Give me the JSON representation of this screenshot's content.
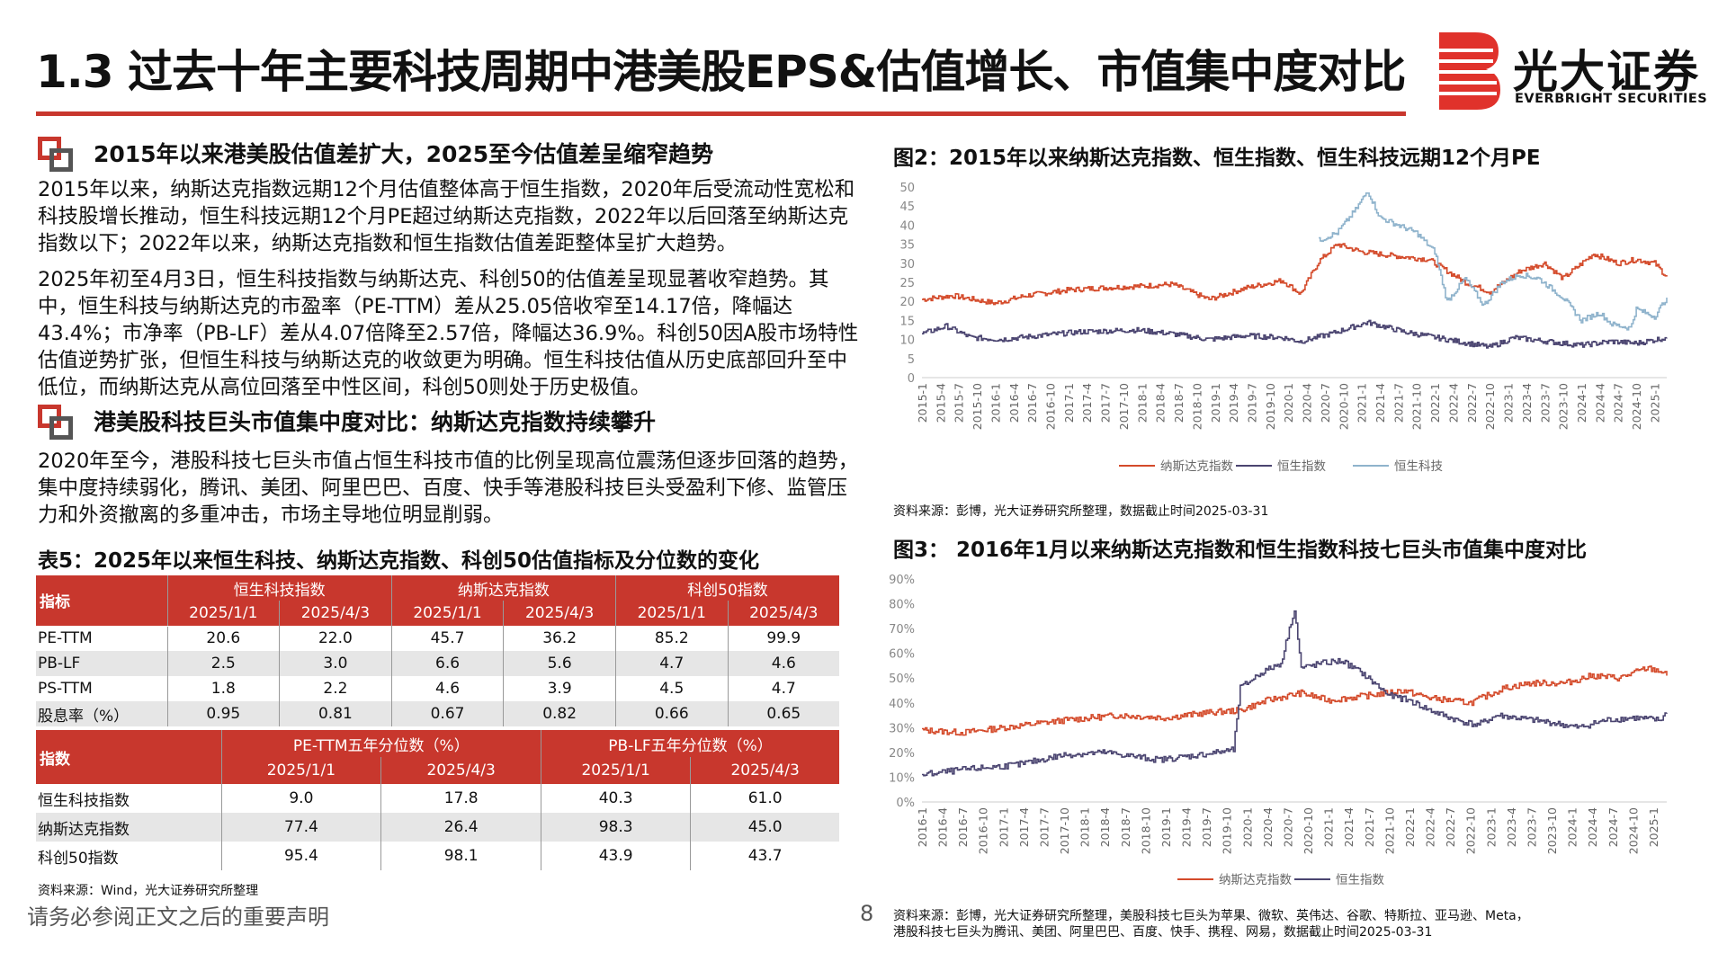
{
  "title": "1.3 过去十年主要科技周期中港美股EPS&估值增长、市值集中度对比",
  "logo": {
    "cn": "光大证券",
    "en": "EVERBRIGHT SECURITIES"
  },
  "sections": [
    {
      "heading": "2015年以来港美股估值差扩大，2025至今估值差呈缩窄趋势",
      "paragraphs": [
        "2015年以来，纳斯达克指数远期12个月估值整体高于恒生指数，2020年后受流动性宽松和科技股增长推动，恒生科技远期12个月PE超过纳斯达克指数，2022年以后回落至纳斯达克指数以下；2022年以来，纳斯达克指数和恒生指数估值差距整体呈扩大趋势。",
        "2025年初至4月3日，恒生科技指数与纳斯达克、科创50的估值差呈现显著收窄趋势。其中，恒生科技与纳斯达克的市盈率（PE-TTM）差从25.05倍收窄至14.17倍，降幅达43.4%；市净率（PB-LF）差从4.07倍降至2.57倍，降幅达36.9%。科创50因A股市场特性估值逆势扩张，但恒生科技与纳斯达克的收敛更为明确。恒生科技估值从历史底部回升至中低位，而纳斯达克从高位回落至中性区间，科创50则处于历史极值。"
      ]
    },
    {
      "heading": "港美股科技巨头市值集中度对比：纳斯达克指数持续攀升",
      "paragraphs": [
        "2020年至今，港股科技七巨头市值占恒生科技市值的比例呈现高位震荡但逐步回落的趋势，集中度持续弱化，腾讯、美团、阿里巴巴、百度、快手等港股科技巨头受盈利下修、监管压力和外资撤离的多重冲击，市场主导地位明显削弱。"
      ]
    }
  ],
  "table5": {
    "title": "表5：2025年以来恒生科技、纳斯达克指数、科创50估值指标及分位数的变化",
    "part1": {
      "corner": "指标",
      "groups": [
        "恒生科技指数",
        "纳斯达克指数",
        "科创50指数"
      ],
      "dates": [
        "2025/1/1",
        "2025/4/3",
        "2025/1/1",
        "2025/4/3",
        "2025/1/1",
        "2025/4/3"
      ],
      "rows": [
        {
          "label": "PE-TTM",
          "values": [
            "20.6",
            "22.0",
            "45.7",
            "36.2",
            "85.2",
            "99.9"
          ]
        },
        {
          "label": "PB-LF",
          "values": [
            "2.5",
            "3.0",
            "6.6",
            "5.6",
            "4.7",
            "4.6"
          ]
        },
        {
          "label": "PS-TTM",
          "values": [
            "1.8",
            "2.2",
            "4.6",
            "3.9",
            "4.5",
            "4.7"
          ]
        },
        {
          "label": "股息率（%）",
          "values": [
            "0.95",
            "0.81",
            "0.67",
            "0.82",
            "0.66",
            "0.65"
          ]
        }
      ]
    },
    "part2": {
      "corner": "指数",
      "groups": [
        "PE-TTM五年分位数（%）",
        "PB-LF五年分位数（%）"
      ],
      "dates": [
        "2025/1/1",
        "2025/4/3",
        "2025/1/1",
        "2025/4/3"
      ],
      "rows": [
        {
          "label": "恒生科技指数",
          "values": [
            "9.0",
            "17.8",
            "40.3",
            "61.0"
          ]
        },
        {
          "label": "纳斯达克指数",
          "values": [
            "77.4",
            "26.4",
            "98.3",
            "45.0"
          ]
        },
        {
          "label": "科创50指数",
          "values": [
            "95.4",
            "98.1",
            "43.9",
            "43.7"
          ]
        }
      ]
    },
    "source": "资料来源：Wind，光大证券研究所整理"
  },
  "footer": {
    "disclaimer": "请务必参阅正文之后的重要声明",
    "page": "8"
  },
  "colors": {
    "accent": "#c8372d",
    "nasdaq": "#d44a2a",
    "hsi": "#4a4470",
    "hstech": "#8fb3cc"
  },
  "chart_data": [
    {
      "type": "line",
      "title": "图2：2015年以来纳斯达克指数、恒生指数、恒生科技远期12个月PE",
      "ylim": [
        0,
        50
      ],
      "yticks": [
        "0",
        "5",
        "10",
        "15",
        "20",
        "25",
        "30",
        "35",
        "40",
        "45",
        "50"
      ],
      "x_start": "2015-1",
      "x_end": "2025-3",
      "xticks": [
        "2015-1",
        "2015-4",
        "2015-7",
        "2015-10",
        "2016-1",
        "2016-4",
        "2016-7",
        "2016-10",
        "2017-1",
        "2017-4",
        "2017-7",
        "2017-10",
        "2018-1",
        "2018-4",
        "2018-7",
        "2018-10",
        "2019-1",
        "2019-4",
        "2019-7",
        "2019-10",
        "2020-1",
        "2020-4",
        "2020-7",
        "2020-10",
        "2021-1",
        "2021-4",
        "2021-7",
        "2021-10",
        "2022-1",
        "2022-4",
        "2022-7",
        "2022-10",
        "2023-1",
        "2023-4",
        "2023-7",
        "2023-10",
        "2024-1",
        "2024-4",
        "2024-7",
        "2024-10",
        "2025-1"
      ],
      "series": [
        {
          "name": "纳斯达克指数",
          "color": "#d44a2a",
          "x": [
            "2015-1",
            "2015-6",
            "2016-1",
            "2016-6",
            "2017-1",
            "2017-6",
            "2018-1",
            "2018-6",
            "2018-12",
            "2019-6",
            "2019-12",
            "2020-3",
            "2020-6",
            "2020-9",
            "2021-1",
            "2021-6",
            "2021-12",
            "2022-6",
            "2022-10",
            "2023-3",
            "2023-7",
            "2023-10",
            "2024-3",
            "2024-7",
            "2024-10",
            "2025-1",
            "2025-3"
          ],
          "values": [
            20.5,
            21.5,
            19.5,
            21.5,
            23,
            23.5,
            24,
            24.5,
            20.5,
            23.5,
            25.5,
            22,
            30.5,
            35,
            33,
            32,
            31,
            25,
            22.5,
            28,
            30,
            26,
            32.5,
            30,
            31,
            30,
            26.5
          ]
        },
        {
          "name": "恒生指数",
          "color": "#4a4470",
          "x": [
            "2015-1",
            "2015-5",
            "2015-9",
            "2016-2",
            "2016-8",
            "2017-3",
            "2017-12",
            "2018-6",
            "2018-12",
            "2019-6",
            "2019-12",
            "2020-3",
            "2020-8",
            "2021-2",
            "2021-8",
            "2022-3",
            "2022-10",
            "2023-2",
            "2023-10",
            "2024-1",
            "2024-6",
            "2024-10",
            "2025-3"
          ],
          "values": [
            11.5,
            13.5,
            10.5,
            10,
            11,
            12,
            12.5,
            11.5,
            10,
            11,
            10.5,
            9.5,
            11.5,
            14.5,
            12,
            10,
            8,
            10.5,
            9,
            8.5,
            9.5,
            9,
            10.5
          ]
        },
        {
          "name": "恒生科技",
          "color": "#8fb3cc",
          "x": [
            "2020-6",
            "2020-9",
            "2020-12",
            "2021-2",
            "2021-4",
            "2021-7",
            "2021-10",
            "2022-1",
            "2022-3",
            "2022-6",
            "2022-9",
            "2022-12",
            "2023-3",
            "2023-6",
            "2023-10",
            "2024-1",
            "2024-4",
            "2024-6",
            "2024-9",
            "2024-10",
            "2025-1",
            "2025-3"
          ],
          "values": [
            36,
            38,
            44,
            49,
            42,
            40,
            38,
            33,
            20,
            26,
            19,
            25,
            27,
            26,
            21,
            15,
            17,
            14,
            13,
            18,
            16,
            21
          ]
        }
      ],
      "source": "资料来源：彭博，光大证券研究所整理，数据截止时间2025-03-31"
    },
    {
      "type": "line",
      "title": "图3：  2016年1月以来纳斯达克指数和恒生指数科技七巨头市值集中度对比",
      "ylim": [
        0,
        90
      ],
      "yticks": [
        "0%",
        "10%",
        "20%",
        "30%",
        "40%",
        "50%",
        "60%",
        "70%",
        "80%",
        "90%"
      ],
      "x_start": "2016-1",
      "x_end": "2025-3",
      "xticks": [
        "2016-1",
        "2016-4",
        "2016-7",
        "2016-10",
        "2017-1",
        "2017-4",
        "2017-7",
        "2017-10",
        "2018-1",
        "2018-4",
        "2018-7",
        "2018-10",
        "2019-1",
        "2019-4",
        "2019-7",
        "2019-10",
        "2020-1",
        "2020-4",
        "2020-7",
        "2020-10",
        "2021-1",
        "2021-4",
        "2021-7",
        "2021-10",
        "2022-1",
        "2022-4",
        "2022-7",
        "2022-10",
        "2023-1",
        "2023-4",
        "2023-7",
        "2023-10",
        "2024-1",
        "2024-4",
        "2024-7",
        "2024-10",
        "2025-1"
      ],
      "series": [
        {
          "name": "纳斯达克指数",
          "color": "#d44a2a",
          "x": [
            "2016-1",
            "2016-7",
            "2017-1",
            "2017-10",
            "2018-6",
            "2019-1",
            "2019-7",
            "2019-12",
            "2020-4",
            "2020-9",
            "2021-1",
            "2021-7",
            "2021-12",
            "2022-4",
            "2022-10",
            "2023-3",
            "2023-7",
            "2023-12",
            "2024-4",
            "2024-8",
            "2024-12",
            "2025-2",
            "2025-3"
          ],
          "values": [
            29,
            28,
            30,
            33,
            35,
            34,
            36,
            37,
            41,
            44,
            41,
            43,
            45,
            42,
            40,
            46,
            48,
            48,
            51,
            50,
            54,
            53,
            51
          ]
        },
        {
          "name": "恒生指数",
          "color": "#4a4470",
          "x": [
            "2016-1",
            "2016-7",
            "2017-3",
            "2017-10",
            "2018-4",
            "2018-12",
            "2019-6",
            "2019-11",
            "2019-12",
            "2020-3",
            "2020-6",
            "2020-8",
            "2020-9",
            "2020-12",
            "2021-3",
            "2021-6",
            "2021-10",
            "2022-1",
            "2022-4",
            "2022-8",
            "2022-11",
            "2023-2",
            "2023-10",
            "2024-2",
            "2024-6",
            "2024-10",
            "2025-2",
            "2025-3"
          ],
          "values": [
            11,
            13,
            15,
            19,
            20,
            17,
            19,
            21,
            46,
            52,
            56,
            78,
            54,
            56,
            57,
            52,
            43,
            41,
            37,
            33,
            31,
            35,
            32,
            30,
            33,
            34,
            33,
            36
          ]
        }
      ],
      "source_lines": [
        "资料来源：彭博，光大证券研究所整理，美股科技七巨头为苹果、微软、英伟达、谷歌、特斯拉、亚马逊、Meta，",
        "港股科技七巨头为腾讯、美团、阿里巴巴、百度、快手、携程、网易，数据截止时间2025-03-31"
      ]
    }
  ]
}
